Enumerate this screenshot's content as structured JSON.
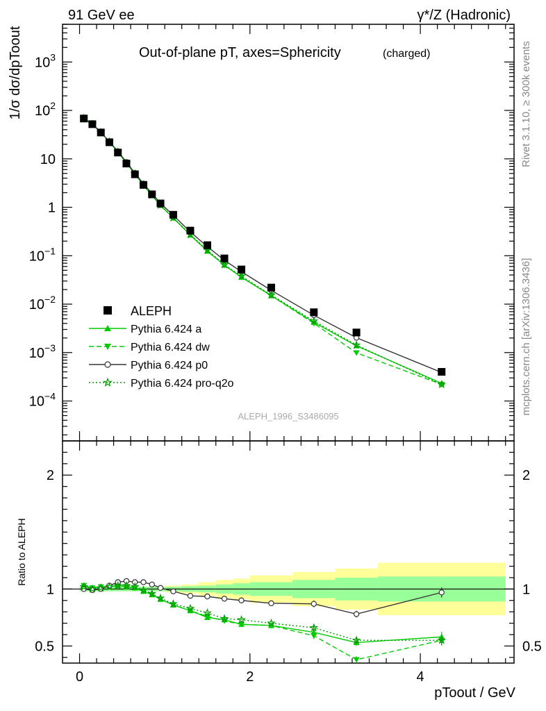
{
  "header": {
    "left": "91 GeV ee",
    "right": "γ*/Z (Hadronic)"
  },
  "side": {
    "rivet": "Rivet 3.1.10, ≥ 300k events",
    "mcplots": "mcplots.cern.ch [arXiv:1306.3436]"
  },
  "colors": {
    "data": "#000000",
    "green": "#00cc00",
    "darkgreen": "#009900",
    "gray": "#333333",
    "band_inner": "#99ff99",
    "band_outer": "#ffff99"
  },
  "chart_data": {
    "type": "line",
    "title": "Out-of-plane pT, axes=Sphericity",
    "title_note": "(charged)",
    "watermark": "ALEPH_1996_S3486095",
    "xlabel": "pToout / GeV",
    "ylabel": "1/σ dσ/dpToout",
    "ratio_ylabel": "Ratio to ALEPH",
    "xlim": [
      -0.2,
      5.1
    ],
    "ylim_log": [
      1.5e-05,
      6000
    ],
    "ratio_ylim": [
      0.35,
      2.3
    ],
    "x_ticks": [
      "0",
      "2",
      "4"
    ],
    "y_ticks": [
      "10^-4",
      "10^-3",
      "10^-2",
      "10^-1",
      "1",
      "10",
      "10^2",
      "10^3"
    ],
    "ratio_ticks": [
      "0.5",
      "1",
      "2"
    ],
    "x": [
      0.05,
      0.15,
      0.25,
      0.35,
      0.45,
      0.55,
      0.65,
      0.75,
      0.85,
      0.95,
      1.1,
      1.3,
      1.5,
      1.7,
      1.9,
      2.25,
      2.75,
      3.25,
      4.25
    ],
    "aleph": [
      68,
      52,
      35,
      22,
      13.5,
      8.0,
      4.8,
      2.9,
      1.85,
      1.2,
      0.7,
      0.33,
      0.165,
      0.088,
      0.052,
      0.022,
      0.0068,
      0.0026,
      0.0004
    ],
    "series": [
      {
        "name": "Pythia 6.424 a",
        "style": "solid",
        "color": "#00cc00",
        "marker": "triangle-up",
        "ratio": [
          1.03,
          1.01,
          1.02,
          1.02,
          1.03,
          1.02,
          1.01,
          0.98,
          0.95,
          0.91,
          0.86,
          0.81,
          0.75,
          0.73,
          0.69,
          0.68,
          0.62,
          0.53,
          0.58
        ]
      },
      {
        "name": "Pythia 6.424 dw",
        "style": "dashed",
        "color": "#00cc00",
        "marker": "triangle-down",
        "ratio": [
          1.03,
          1.01,
          1.02,
          1.02,
          1.03,
          1.02,
          1.01,
          0.98,
          0.95,
          0.91,
          0.86,
          0.81,
          0.76,
          0.72,
          0.69,
          0.68,
          0.59,
          0.38,
          0.55
        ]
      },
      {
        "name": "Pythia 6.424 p0",
        "style": "solid",
        "color": "#333333",
        "marker": "circle-open",
        "ratio": [
          1.0,
          0.99,
          1.0,
          1.03,
          1.06,
          1.07,
          1.06,
          1.06,
          1.04,
          1.01,
          0.98,
          0.94,
          0.935,
          0.915,
          0.9,
          0.875,
          0.87,
          0.78,
          0.97
        ]
      },
      {
        "name": "Pythia 6.424 pro-q2o",
        "style": "dotted",
        "color": "#009900",
        "marker": "star-open",
        "ratio": [
          1.02,
          1.0,
          1.01,
          1.02,
          1.03,
          1.03,
          1.02,
          0.99,
          0.96,
          0.92,
          0.87,
          0.83,
          0.79,
          0.74,
          0.73,
          0.7,
          0.66,
          0.55,
          0.55
        ]
      }
    ],
    "bands": {
      "edges": [
        0.0,
        1.0,
        1.2,
        1.4,
        1.6,
        1.8,
        2.0,
        2.5,
        3.0,
        3.5,
        5.0
      ],
      "inner": [
        0.02,
        0.02,
        0.025,
        0.03,
        0.04,
        0.05,
        0.06,
        0.08,
        0.1,
        0.11
      ],
      "outer": [
        0.02,
        0.03,
        0.04,
        0.06,
        0.08,
        0.09,
        0.12,
        0.15,
        0.18,
        0.23
      ]
    }
  }
}
